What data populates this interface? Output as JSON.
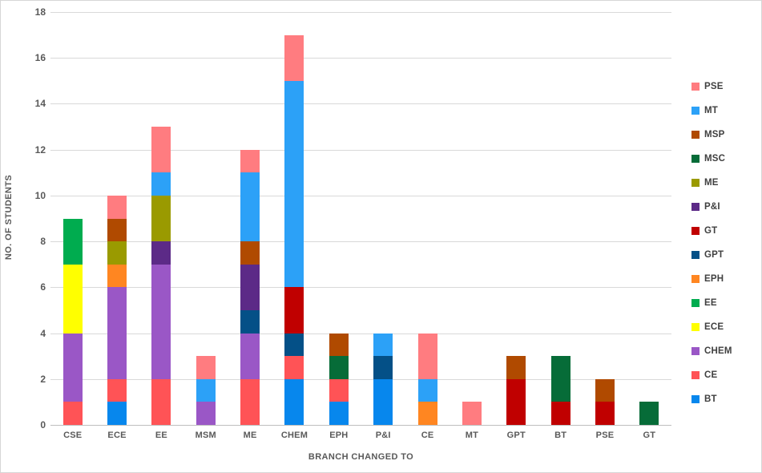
{
  "chart_data": {
    "type": "bar",
    "stacked": true,
    "xlabel": "BRANCH CHANGED TO",
    "ylabel": "NO. OF STUDENTS",
    "ylim": [
      0,
      18
    ],
    "ytick_step": 2,
    "grid": true,
    "legend_position": "right",
    "categories": [
      "CSE",
      "ECE",
      "EE",
      "MSM",
      "ME",
      "CHEM",
      "EPH",
      "P&I",
      "CE",
      "MT",
      "GPT",
      "BT",
      "PSE",
      "GT"
    ],
    "series": [
      {
        "name": "BT",
        "color": "#0787ED",
        "values": [
          0,
          1,
          0,
          0,
          0,
          2,
          1,
          2,
          0,
          0,
          0,
          0,
          0,
          0
        ]
      },
      {
        "name": "CE",
        "color": "#FF5356",
        "values": [
          1,
          1,
          2,
          0,
          2,
          1,
          1,
          0,
          0,
          0,
          0,
          0,
          0,
          0
        ]
      },
      {
        "name": "CHEM",
        "color": "#9A57C6",
        "values": [
          3,
          4,
          5,
          1,
          2,
          0,
          0,
          0,
          0,
          0,
          0,
          0,
          0,
          0
        ]
      },
      {
        "name": "ECE",
        "color": "#FFFF00",
        "values": [
          3,
          0,
          0,
          0,
          0,
          0,
          0,
          0,
          0,
          0,
          0,
          0,
          0,
          0
        ]
      },
      {
        "name": "EE",
        "color": "#00AC4F",
        "values": [
          2,
          0,
          0,
          0,
          0,
          0,
          0,
          0,
          0,
          0,
          0,
          0,
          0,
          0
        ]
      },
      {
        "name": "EPH",
        "color": "#FF8621",
        "values": [
          0,
          1,
          0,
          0,
          0,
          0,
          0,
          0,
          1,
          0,
          0,
          0,
          0,
          0
        ]
      },
      {
        "name": "GPT",
        "color": "#045087",
        "values": [
          0,
          0,
          0,
          0,
          1,
          1,
          0,
          1,
          0,
          0,
          0,
          0,
          0,
          0
        ]
      },
      {
        "name": "GT",
        "color": "#C00000",
        "values": [
          0,
          0,
          0,
          0,
          0,
          2,
          0,
          0,
          0,
          0,
          2,
          1,
          1,
          0
        ]
      },
      {
        "name": "P&I",
        "color": "#5C2A87",
        "values": [
          0,
          0,
          1,
          0,
          2,
          0,
          0,
          0,
          0,
          0,
          0,
          0,
          0,
          0
        ]
      },
      {
        "name": "ME",
        "color": "#9A9A00",
        "values": [
          0,
          1,
          2,
          0,
          0,
          0,
          0,
          0,
          0,
          0,
          0,
          0,
          0,
          0
        ]
      },
      {
        "name": "MSC",
        "color": "#066C38",
        "values": [
          0,
          0,
          0,
          0,
          0,
          0,
          1,
          0,
          0,
          0,
          0,
          2,
          0,
          1
        ]
      },
      {
        "name": "MSP",
        "color": "#B04A00",
        "values": [
          0,
          1,
          0,
          0,
          1,
          0,
          1,
          0,
          0,
          0,
          1,
          0,
          1,
          0
        ]
      },
      {
        "name": "MT",
        "color": "#2CA1F7",
        "values": [
          0,
          0,
          1,
          1,
          3,
          9,
          0,
          1,
          1,
          0,
          0,
          0,
          0,
          0
        ]
      },
      {
        "name": "PSE",
        "color": "#FF7C80",
        "values": [
          0,
          1,
          2,
          1,
          1,
          2,
          0,
          0,
          2,
          1,
          0,
          0,
          0,
          0
        ]
      }
    ],
    "legend_entries": [
      "PSE",
      "MT",
      "MSP",
      "MSC",
      "ME",
      "P&I",
      "GT",
      "GPT",
      "EPH",
      "EE",
      "ECE",
      "CHEM",
      "CE",
      "BT"
    ],
    "ytick_labels": [
      "0",
      "2",
      "4",
      "6",
      "8",
      "10",
      "12",
      "14",
      "16",
      "18"
    ]
  }
}
